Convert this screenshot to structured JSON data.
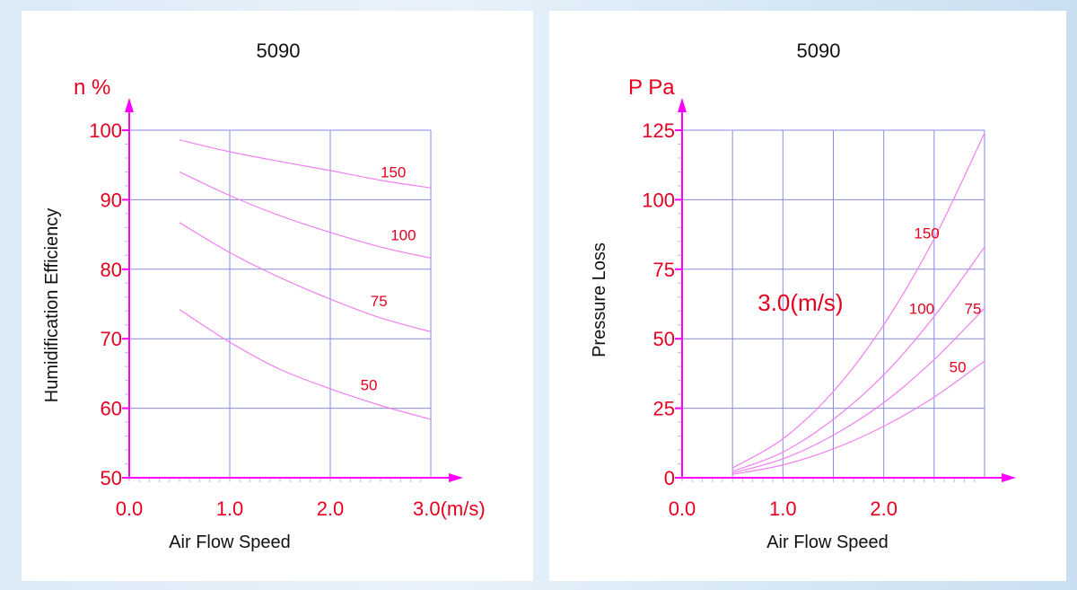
{
  "chart_data": [
    {
      "type": "line",
      "title": "5090",
      "y_unit_label": "n %",
      "xlabel": "Air Flow Speed",
      "ylabel": "Humidification Efficiency",
      "xlim": [
        0,
        3.0
      ],
      "ylim": [
        50,
        100
      ],
      "x_ticks": [
        "0.0",
        "1.0",
        "2.0",
        "3.0(m/s)"
      ],
      "x_tick_values": [
        0,
        1,
        2,
        3
      ],
      "y_ticks": [
        "50",
        "60",
        "70",
        "80",
        "90",
        "100"
      ],
      "y_tick_values": [
        50,
        60,
        70,
        80,
        90,
        100
      ],
      "grid": true,
      "series": [
        {
          "name": "150",
          "x": [
            0.5,
            1.0,
            1.5,
            2.0,
            2.5,
            3.0
          ],
          "y": [
            98.6,
            96.9,
            95.5,
            94.2,
            92.8,
            91.7
          ]
        },
        {
          "name": "100",
          "x": [
            0.5,
            1.0,
            1.5,
            2.0,
            2.5,
            3.0
          ],
          "y": [
            94.0,
            90.6,
            87.7,
            85.3,
            83.2,
            81.6
          ]
        },
        {
          "name": "75",
          "x": [
            0.5,
            1.0,
            1.5,
            2.0,
            2.5,
            3.0
          ],
          "y": [
            86.7,
            82.4,
            78.8,
            75.7,
            73.0,
            71.0
          ]
        },
        {
          "name": "50",
          "x": [
            0.5,
            1.0,
            1.5,
            2.0,
            2.5,
            3.0
          ],
          "y": [
            74.2,
            69.5,
            65.6,
            62.8,
            60.4,
            58.4
          ]
        }
      ],
      "label_positions": [
        {
          "name": "150",
          "x": 2.5,
          "y": 93.2
        },
        {
          "name": "100",
          "x": 2.6,
          "y": 84.2
        },
        {
          "name": "75",
          "x": 2.4,
          "y": 74.7
        },
        {
          "name": "50",
          "x": 2.3,
          "y": 62.6
        }
      ]
    },
    {
      "type": "line",
      "title": "5090",
      "y_unit_label": "P Pa",
      "xlabel": "Air Flow Speed",
      "ylabel": "Pressure Loss",
      "annotation": "3.0(m/s)",
      "xlim": [
        0,
        3.0
      ],
      "ylim": [
        0,
        125
      ],
      "x_ticks": [
        "0.0",
        "1.0",
        "2.0"
      ],
      "x_tick_values": [
        0,
        1,
        2
      ],
      "y_ticks": [
        "0",
        "25",
        "50",
        "75",
        "100",
        "125"
      ],
      "y_tick_values": [
        0,
        25,
        50,
        75,
        100,
        125
      ],
      "grid": true,
      "series": [
        {
          "name": "150",
          "x": [
            0.5,
            1.0,
            1.5,
            2.0,
            2.5,
            3.0
          ],
          "y": [
            3.5,
            14,
            31,
            55,
            86,
            124
          ]
        },
        {
          "name": "100",
          "x": [
            0.5,
            1.0,
            1.5,
            2.0,
            2.5,
            3.0
          ],
          "y": [
            2.3,
            9.2,
            21,
            37,
            58,
            83
          ]
        },
        {
          "name": "75",
          "x": [
            0.5,
            1.0,
            1.5,
            2.0,
            2.5,
            3.0
          ],
          "y": [
            1.7,
            6.8,
            15.3,
            27,
            42.5,
            61
          ]
        },
        {
          "name": "50",
          "x": [
            0.5,
            1.0,
            1.5,
            2.0,
            2.5,
            3.0
          ],
          "y": [
            1.2,
            4.6,
            10.4,
            18.5,
            29,
            42
          ]
        }
      ],
      "label_positions": [
        {
          "name": "150",
          "x": 2.3,
          "y": 86
        },
        {
          "name": "100",
          "x": 2.25,
          "y": 59
        },
        {
          "name": "75",
          "x": 2.8,
          "y": 59
        },
        {
          "name": "50",
          "x": 2.65,
          "y": 38
        }
      ],
      "annotation_position": {
        "x": 0.75,
        "y": 60
      }
    }
  ]
}
